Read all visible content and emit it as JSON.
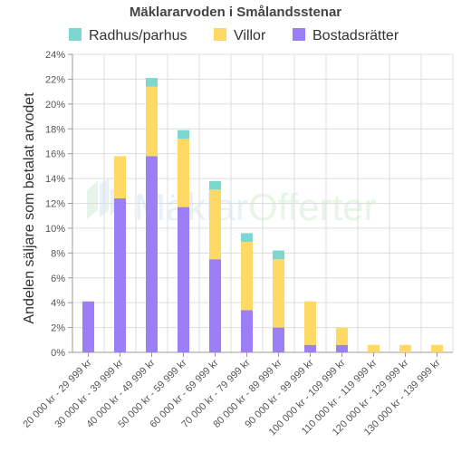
{
  "chart_data": {
    "type": "bar",
    "stacked": true,
    "title": "Mäklararvoden i Smålandsstenar",
    "xlabel": "",
    "ylabel": "Andelen säljare som betalat arvodet",
    "ylim": [
      0,
      24
    ],
    "yticks": [
      "0%",
      "2%",
      "4%",
      "6%",
      "8%",
      "10%",
      "12%",
      "14%",
      "16%",
      "18%",
      "20%",
      "22%",
      "24%"
    ],
    "grid": true,
    "legend_position": "top",
    "categories": [
      "20 000 kr - 29 999 kr",
      "30 000 kr - 39 999 kr",
      "40 000 kr - 49 999 kr",
      "50 000 kr - 59 999 kr",
      "60 000 kr - 69 999 kr",
      "70 000 kr - 79 999 kr",
      "80 000 kr - 89 999 kr",
      "90 000 kr - 99 999 kr",
      "100 000 kr - 109 999 kr",
      "110 000 kr - 119 999 kr",
      "120 000 kr - 129 999 kr",
      "130 000 kr - 139 999 kr"
    ],
    "series": [
      {
        "name": "Bostadsrätter",
        "color": "#9d7ff5",
        "values": [
          4.1,
          12.4,
          15.8,
          11.7,
          7.5,
          3.4,
          2.0,
          0.6,
          0.6,
          0,
          0,
          0
        ]
      },
      {
        "name": "Villor",
        "color": "#ffd966",
        "values": [
          0,
          3.4,
          5.6,
          5.5,
          5.6,
          5.5,
          5.5,
          3.5,
          1.4,
          0.6,
          0.6,
          0.6
        ]
      },
      {
        "name": "Radhus/parhus",
        "color": "#7dd6d0",
        "values": [
          0,
          0,
          0.7,
          0.7,
          0.7,
          0.7,
          0.7,
          0,
          0,
          0,
          0,
          0
        ]
      }
    ],
    "legend_order": [
      "Radhus/parhus",
      "Villor",
      "Bostadsrätter"
    ]
  },
  "watermark": {
    "text_left": "Mäklar",
    "text_right": "Offerter",
    "color_left": "#4a90c2",
    "color_right": "#39b54a"
  }
}
